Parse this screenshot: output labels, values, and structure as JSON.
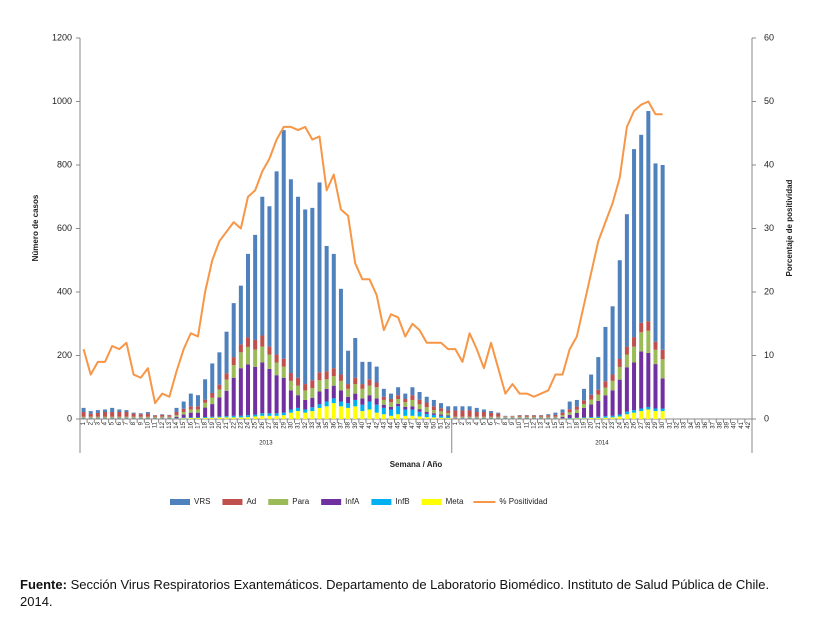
{
  "chart_data": {
    "type": "bar",
    "stacked": true,
    "y_label": "Número de casos",
    "y2_label": "Porcentaje de positividad",
    "x_label": "Semana / Año",
    "x_group_labels": [
      "2013",
      "2014"
    ],
    "categories": [
      "1",
      "2",
      "3",
      "4",
      "5",
      "6",
      "7",
      "8",
      "9",
      "10",
      "11",
      "12",
      "13",
      "14",
      "15",
      "16",
      "17",
      "18",
      "19",
      "20",
      "21",
      "22",
      "23",
      "24",
      "25",
      "26",
      "27",
      "28",
      "29",
      "30",
      "31",
      "32",
      "33",
      "34",
      "35",
      "36",
      "37",
      "38",
      "39",
      "40",
      "41",
      "42",
      "43",
      "44",
      "45",
      "46",
      "47",
      "48",
      "49",
      "50",
      "51",
      "52",
      "1",
      "2",
      "3",
      "4",
      "5",
      "6",
      "7",
      "8",
      "9",
      "10",
      "11",
      "12",
      "13",
      "14",
      "15",
      "16",
      "17",
      "18",
      "19",
      "20",
      "21",
      "22",
      "23",
      "24",
      "25",
      "26",
      "27",
      "28",
      "29",
      "30",
      "31",
      "32",
      "33",
      "34",
      "35",
      "36",
      "37",
      "38",
      "39",
      "40",
      "41",
      "42"
    ],
    "ylim": [
      0,
      1200
    ],
    "yticks": [
      0,
      200,
      400,
      600,
      800,
      1000,
      1200
    ],
    "y2lim": [
      0,
      60
    ],
    "y2ticks": [
      0,
      10,
      20,
      30,
      40,
      50,
      60
    ],
    "series": [
      {
        "name": "VRS",
        "color": "#4f81bd",
        "values": [
          13,
          8,
          9,
          8,
          13,
          8,
          6,
          3,
          3,
          5,
          1,
          2,
          1,
          13,
          23,
          40,
          35,
          64,
          93,
          102,
          131,
          170,
          185,
          263,
          331,
          437,
          442,
          577,
          720,
          610,
          570,
          550,
          543,
          598,
          395,
          360,
          270,
          105,
          125,
          70,
          55,
          50,
          25,
          17,
          25,
          17,
          25,
          24,
          18,
          20,
          16,
          13,
          13,
          13,
          13,
          13,
          8,
          6,
          3,
          1,
          1,
          1,
          1,
          1,
          1,
          3,
          7,
          10,
          24,
          21,
          36,
          64,
          103,
          171,
          215,
          311,
          417,
          592,
          592,
          662,
          562,
          582,
          null,
          null,
          null,
          null,
          null,
          null,
          null,
          null,
          null,
          null,
          null,
          null
        ]
      },
      {
        "name": "Ad",
        "color": "#c0504d",
        "values": [
          15,
          10,
          12,
          15,
          15,
          15,
          15,
          10,
          8,
          10,
          4,
          6,
          5,
          10,
          10,
          10,
          10,
          10,
          15,
          15,
          20,
          25,
          25,
          30,
          30,
          35,
          25,
          25,
          25,
          25,
          25,
          20,
          25,
          25,
          25,
          25,
          20,
          15,
          20,
          15,
          20,
          15,
          10,
          10,
          12,
          10,
          15,
          15,
          15,
          12,
          10,
          8,
          20,
          20,
          20,
          15,
          15,
          12,
          10,
          2,
          2,
          4,
          4,
          4,
          4,
          5,
          6,
          8,
          10,
          10,
          12,
          15,
          15,
          20,
          20,
          25,
          25,
          30,
          30,
          30,
          25,
          30,
          null,
          null,
          null,
          null,
          null,
          null,
          null,
          null,
          null,
          null,
          null,
          null
        ]
      },
      {
        "name": "Para",
        "color": "#9bbb59",
        "values": [
          3,
          3,
          3,
          3,
          3,
          3,
          3,
          3,
          3,
          3,
          3,
          3,
          3,
          5,
          8,
          10,
          10,
          15,
          20,
          25,
          35,
          40,
          50,
          55,
          55,
          50,
          45,
          40,
          35,
          30,
          30,
          30,
          30,
          35,
          30,
          30,
          30,
          25,
          30,
          30,
          30,
          35,
          15,
          15,
          15,
          15,
          20,
          15,
          15,
          10,
          10,
          8,
          3,
          3,
          3,
          3,
          3,
          3,
          3,
          3,
          3,
          3,
          3,
          3,
          3,
          3,
          3,
          5,
          8,
          10,
          12,
          15,
          20,
          25,
          30,
          40,
          40,
          50,
          60,
          70,
          45,
          60,
          null,
          null,
          null,
          null,
          null,
          null,
          null,
          null,
          null,
          null,
          null,
          null
        ]
      },
      {
        "name": "InfA",
        "color": "#7030a0",
        "values": [
          2,
          2,
          2,
          2,
          2,
          2,
          2,
          2,
          2,
          2,
          2,
          2,
          2,
          5,
          10,
          15,
          15,
          30,
          40,
          60,
          80,
          120,
          150,
          160,
          150,
          160,
          140,
          120,
          110,
          60,
          40,
          30,
          30,
          40,
          40,
          40,
          35,
          20,
          20,
          20,
          20,
          20,
          10,
          8,
          8,
          8,
          10,
          8,
          6,
          5,
          4,
          3,
          2,
          2,
          2,
          2,
          2,
          2,
          2,
          2,
          2,
          2,
          2,
          2,
          2,
          2,
          2,
          5,
          10,
          15,
          30,
          40,
          50,
          65,
          80,
          110,
          140,
          150,
          180,
          170,
          140,
          95,
          null,
          null,
          null,
          null,
          null,
          null,
          null,
          null,
          null,
          null,
          null,
          null
        ]
      },
      {
        "name": "InfB",
        "color": "#00b0f0",
        "values": [
          1,
          1,
          1,
          1,
          1,
          1,
          1,
          1,
          1,
          1,
          1,
          1,
          1,
          1,
          2,
          2,
          2,
          3,
          3,
          3,
          4,
          5,
          5,
          6,
          6,
          8,
          8,
          8,
          8,
          10,
          10,
          10,
          12,
          12,
          15,
          15,
          15,
          15,
          20,
          20,
          25,
          25,
          20,
          20,
          25,
          20,
          20,
          15,
          10,
          8,
          6,
          5,
          1,
          1,
          1,
          1,
          1,
          1,
          1,
          1,
          1,
          1,
          1,
          1,
          1,
          1,
          1,
          1,
          2,
          2,
          3,
          3,
          4,
          5,
          5,
          6,
          8,
          8,
          8,
          8,
          8,
          8,
          null,
          null,
          null,
          null,
          null,
          null,
          null,
          null,
          null,
          null,
          null,
          null
        ]
      },
      {
        "name": "Meta",
        "color": "#ffff00",
        "values": [
          1,
          1,
          1,
          1,
          1,
          1,
          1,
          1,
          1,
          1,
          1,
          1,
          1,
          1,
          2,
          3,
          3,
          3,
          4,
          5,
          5,
          5,
          5,
          6,
          8,
          10,
          10,
          10,
          12,
          20,
          25,
          20,
          25,
          35,
          40,
          50,
          40,
          35,
          40,
          25,
          30,
          20,
          15,
          10,
          15,
          10,
          10,
          8,
          6,
          5,
          4,
          3,
          1,
          1,
          1,
          1,
          1,
          1,
          1,
          1,
          1,
          1,
          1,
          1,
          1,
          1,
          1,
          1,
          1,
          2,
          2,
          3,
          3,
          4,
          5,
          8,
          15,
          20,
          25,
          30,
          25,
          25,
          null,
          null,
          null,
          null,
          null,
          null,
          null,
          null,
          null,
          null,
          null,
          null
        ]
      },
      {
        "name": "% Positividad",
        "color": "#f79646",
        "type": "line",
        "axis": "y2",
        "values": [
          11,
          7,
          9,
          9,
          11.5,
          11,
          12,
          7,
          6.5,
          8,
          2.5,
          4,
          3.5,
          7.5,
          11,
          13.5,
          13,
          20,
          25,
          28,
          29.5,
          31,
          30,
          35,
          36,
          39,
          41,
          44,
          46,
          46,
          45.5,
          46,
          44,
          44.5,
          36,
          38.5,
          33,
          32,
          24.5,
          22,
          22,
          19.5,
          14,
          16.5,
          16,
          13,
          15,
          14,
          12,
          12,
          12,
          11,
          11,
          9,
          13.5,
          11,
          8,
          12,
          8,
          4,
          5.5,
          4,
          4,
          3.5,
          4,
          4.5,
          7,
          7,
          11,
          13,
          18,
          23,
          28,
          31,
          34,
          38,
          46,
          48.5,
          49.5,
          50,
          48,
          48,
          null,
          null,
          null,
          null,
          null,
          null,
          null,
          null,
          null,
          null,
          null,
          null
        ]
      }
    ]
  },
  "source": {
    "label": "Fuente:",
    "text": "Sección Virus Respiratorios Exantemáticos. Departamento de Laboratorio Biomédico. Instituto de Salud Pública de Chile. 2014."
  }
}
